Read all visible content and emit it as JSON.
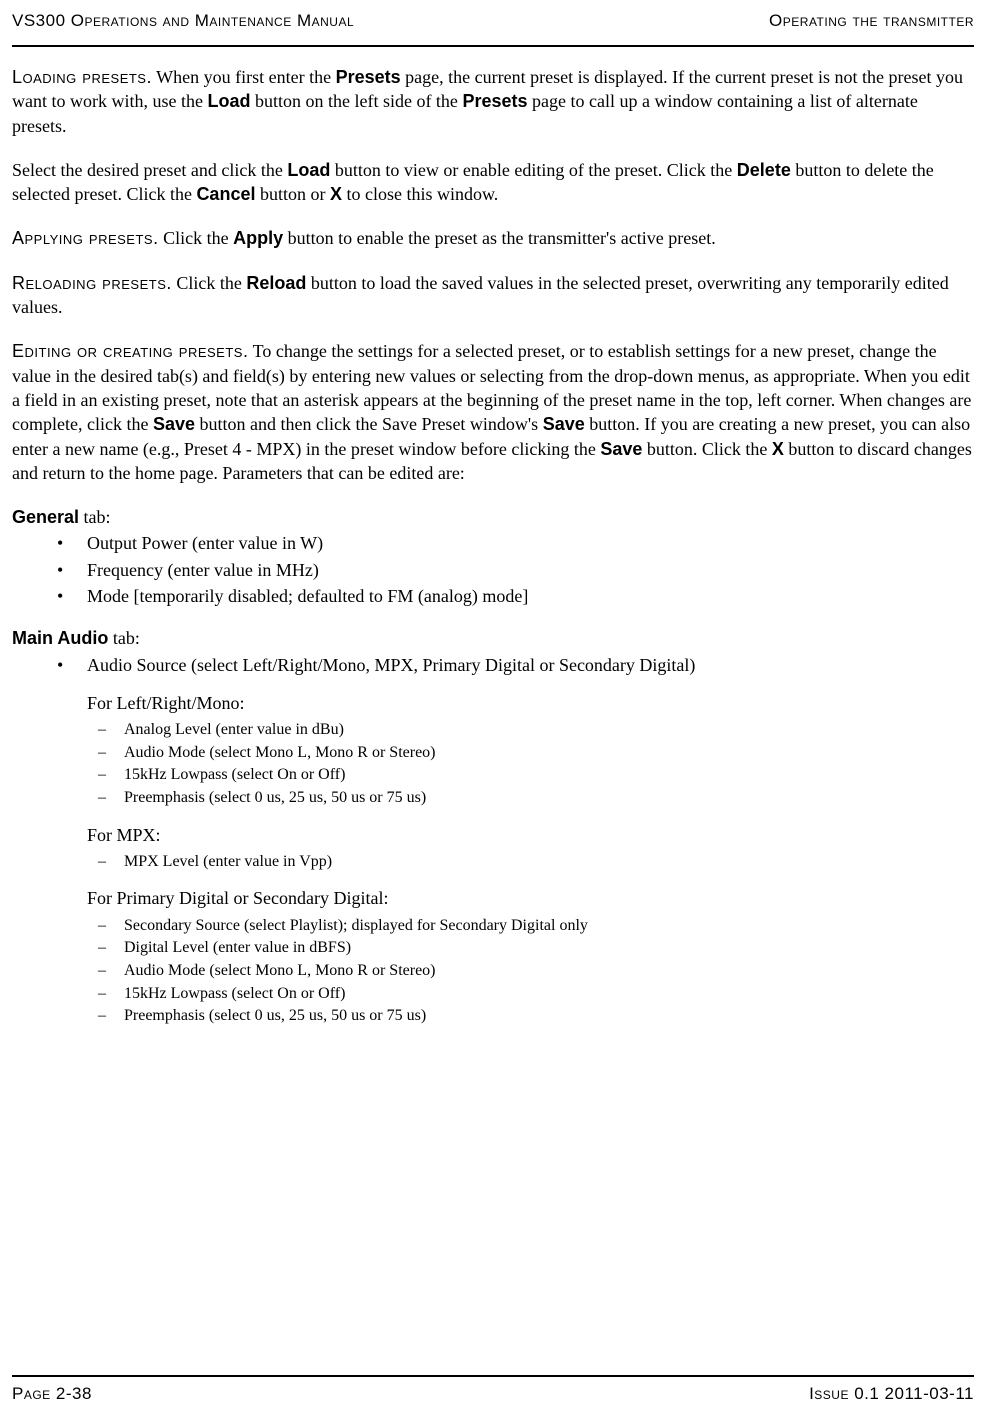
{
  "header": {
    "left": "VS300 Operations and Maintenance Manual",
    "right": "Operating the transmitter"
  },
  "sections": {
    "loading": {
      "head": "Loading presets.",
      "p1a": " When you first enter the ",
      "p1b": "Presets",
      "p1c": " page, the current preset is displayed. If the current preset is not the preset you want to work with, use the ",
      "p1d": "Load",
      "p1e": " button on the left side of the ",
      "p1f": "Presets",
      "p1g": " page to call up a window containing a list of alternate presets.",
      "p2a": "Select the desired preset and click the ",
      "p2b": "Load",
      "p2c": " button to view or enable editing of the preset. Click the ",
      "p2d": "Delete",
      "p2e": " button to delete the selected preset. Click the ",
      "p2f": "Cancel",
      "p2g": " button or ",
      "p2h": "X",
      "p2i": " to close this window."
    },
    "applying": {
      "head": "Applying presets.",
      "p1a": " Click the ",
      "p1b": "Apply",
      "p1c": " button to enable the preset as the transmitter's active preset."
    },
    "reloading": {
      "head": "Reloading presets.",
      "p1a": " Click the ",
      "p1b": "Reload",
      "p1c": " button to load the saved values in the selected preset, overwriting any temporarily edited values."
    },
    "editing": {
      "head": "Editing or creating presets.",
      "p1a": " To change the settings for a selected preset, or to establish settings for a new preset, change the value in the desired tab(s) and field(s) by entering new values or selecting from the drop-down menus, as appropriate. When you edit a field in an existing preset, note that an asterisk appears at the beginning of the preset name in the top, left corner. When changes are complete, click the ",
      "p1b": "Save",
      "p1c": " button and then click the Save Preset window's ",
      "p1d": "Save",
      "p1e": " button. If you are creating a new preset, you can also enter a new name (e.g., Preset 4 - MPX) in the preset window before clicking the ",
      "p1f": "Save",
      "p1g": " button. Click the ",
      "p1h": "X",
      "p1i": " button to discard changes and return to the home page. Parameters that can be edited are:"
    }
  },
  "tabs": {
    "general": {
      "title": "General",
      "suffix": " tab:",
      "items": [
        "Output Power (enter value in W)",
        "Frequency (enter value in MHz)",
        "Mode [temporarily disabled; defaulted to FM (analog) mode]"
      ]
    },
    "mainAudio": {
      "title": "Main Audio",
      "suffix": " tab:",
      "items": [
        "Audio Source (select Left/Right/Mono, MPX, Primary Digital or Secondary Digital)"
      ],
      "sub1": {
        "intro": "For Left/Right/Mono:",
        "items": [
          "Analog Level (enter value in dBu)",
          "Audio Mode (select Mono L, Mono R or Stereo)",
          "15kHz Lowpass (select On or Off)",
          "Preemphasis (select 0 us, 25 us, 50 us or 75 us)"
        ]
      },
      "sub2": {
        "intro": "For MPX:",
        "items": [
          "MPX Level (enter value in Vpp)"
        ]
      },
      "sub3": {
        "intro": "For Primary Digital or Secondary Digital:",
        "items": [
          "Secondary Source (select Playlist); displayed for Secondary Digital only",
          "Digital Level (enter value in dBFS)",
          "Audio Mode (select Mono L, Mono R or Stereo)",
          "15kHz Lowpass (select On or Off)",
          "Preemphasis (select 0 us, 25 us, 50 us or 75 us)"
        ]
      }
    }
  },
  "footer": {
    "left": "Page 2-38",
    "right": "Issue 0.1  2011-03-11"
  }
}
